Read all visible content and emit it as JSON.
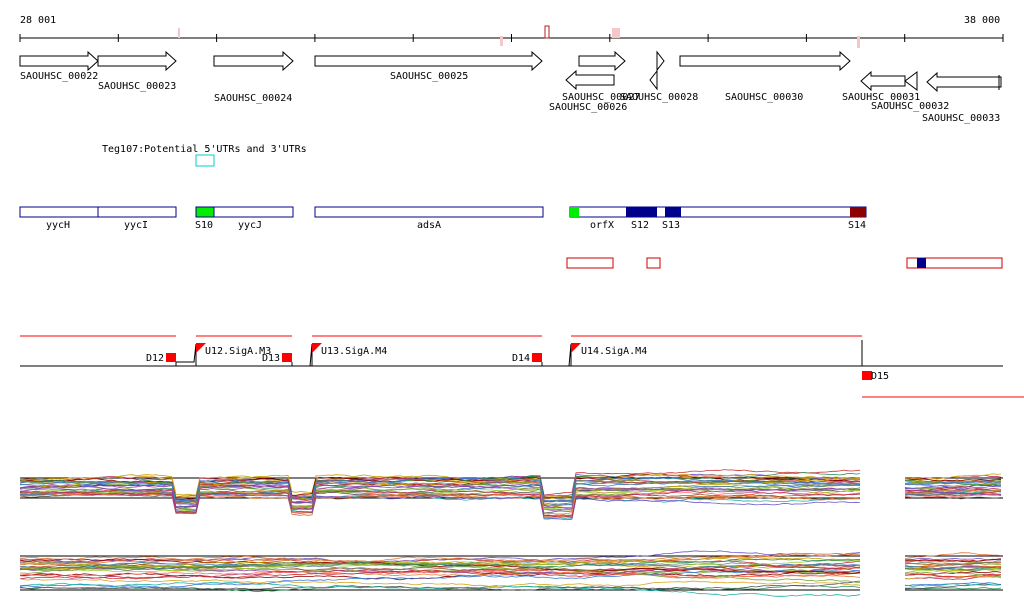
{
  "ruler": {
    "start_label": "28 001",
    "end_label": "38 000"
  },
  "genes": [
    {
      "id": "SAOUHSC_00022",
      "label": "SAOUHSC_00022",
      "start": 28001,
      "end": 28811,
      "strand": "+"
    },
    {
      "id": "SAOUHSC_00023",
      "label": "SAOUHSC_00023",
      "start": 28811,
      "end": 29611,
      "strand": "+"
    },
    {
      "id": "SAOUHSC_00024",
      "label": "SAOUHSC_00024",
      "start": 29961,
      "end": 30771,
      "strand": "+"
    },
    {
      "id": "SAOUHSC_00025",
      "label": "SAOUHSC_00025",
      "start": 30951,
      "end": 33211,
      "strand": "+"
    },
    {
      "id": "SAOUHSC_00026",
      "label": "SAOUHSC_00026",
      "start": 33461,
      "end": 33951,
      "strand": "-"
    },
    {
      "id": "SAOUHSC_00027",
      "label": "SAOUHSC_00027",
      "start": 33591,
      "end": 34081,
      "strand": "+"
    },
    {
      "id": "SAOUHSC_00028",
      "label": "SAOUHSC_00028",
      "start": 34371,
      "end": 34531,
      "strand": "+"
    },
    {
      "id": "SAOUHSC_00030",
      "label": "SAOUHSC_00030",
      "start": 34971,
      "end": 36661,
      "strand": "+"
    },
    {
      "id": "SAOUHSC_00031",
      "label": "SAOUHSC_00031",
      "start": 36991,
      "end": 37441,
      "strand": "-"
    },
    {
      "id": "SAOUHSC_00032",
      "label": "SAOUHSC_00032",
      "start": 37411,
      "end": 37531,
      "strand": "-"
    },
    {
      "id": "SAOUHSC_00033",
      "label": "SAOUHSC_00033",
      "start": 37561,
      "end": 38001,
      "strand": "-"
    }
  ],
  "utr_track": {
    "title": "Teg107:Potential 5'UTRs and 3'UTRs"
  },
  "operon_labels": [
    "yycH",
    "yycI",
    "S10",
    "yycJ",
    "adsA",
    "orfX",
    "S12",
    "S13",
    "S14"
  ],
  "promoters": [
    "U12.SigA.M3",
    "U13.SigA.M4",
    "U14.SigA.M4"
  ],
  "terminators": [
    "D12",
    "D13",
    "D14",
    "D15"
  ],
  "colors": {
    "gene_outline": "#000000",
    "operon_outline": "#00008b",
    "operon_fill_green": "#00ee00",
    "operon_fill_navy": "#00008b",
    "operon_fill_darkred": "#8b0000",
    "utr_cyan": "#00cccc",
    "red": "#ff0000",
    "ruler_pink": "#e8a0a0",
    "ruler_darkred": "#b22222"
  }
}
